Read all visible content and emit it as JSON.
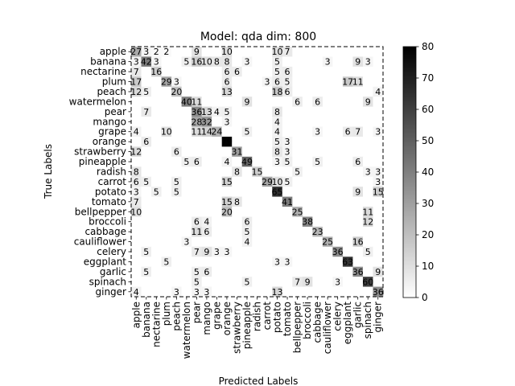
{
  "chart_data": {
    "type": "heatmap",
    "title": "Model: qda dim: 800",
    "xlabel": "Predicted Labels",
    "ylabel": "True Labels",
    "labels": [
      "apple",
      "banana",
      "nectarine",
      "plum",
      "peach",
      "watermelon",
      "pear",
      "mango",
      "grape",
      "orange",
      "strawberry",
      "pineapple",
      "radish",
      "carrot",
      "potato",
      "tomato",
      "bellpepper",
      "broccoli",
      "cabbage",
      "cauliflower",
      "celery",
      "eggplant",
      "garlic",
      "spinach",
      "ginger"
    ],
    "matrix": [
      [
        27,
        3,
        2,
        2,
        0,
        0,
        9,
        0,
        0,
        10,
        0,
        0,
        0,
        0,
        10,
        7,
        0,
        0,
        0,
        0,
        0,
        0,
        0,
        0,
        0
      ],
      [
        3,
        42,
        3,
        0,
        0,
        5,
        16,
        10,
        8,
        8,
        0,
        3,
        0,
        0,
        5,
        0,
        0,
        0,
        0,
        3,
        0,
        0,
        9,
        3,
        0
      ],
      [
        7,
        0,
        16,
        0,
        0,
        0,
        0,
        0,
        0,
        6,
        6,
        0,
        0,
        0,
        5,
        6,
        0,
        0,
        0,
        0,
        0,
        0,
        0,
        0,
        0
      ],
      [
        17,
        0,
        0,
        29,
        3,
        0,
        0,
        0,
        0,
        6,
        0,
        0,
        0,
        3,
        6,
        5,
        0,
        0,
        0,
        0,
        0,
        17,
        11,
        0,
        0
      ],
      [
        12,
        5,
        0,
        0,
        20,
        0,
        0,
        0,
        0,
        13,
        0,
        0,
        0,
        0,
        18,
        6,
        0,
        0,
        0,
        0,
        0,
        0,
        0,
        0,
        4
      ],
      [
        0,
        0,
        0,
        0,
        0,
        40,
        11,
        0,
        0,
        0,
        0,
        9,
        0,
        0,
        0,
        0,
        6,
        0,
        6,
        0,
        0,
        0,
        0,
        9,
        0
      ],
      [
        0,
        7,
        0,
        0,
        0,
        0,
        36,
        13,
        4,
        5,
        0,
        0,
        0,
        0,
        8,
        0,
        0,
        0,
        0,
        0,
        0,
        0,
        0,
        0,
        0
      ],
      [
        0,
        0,
        0,
        0,
        0,
        0,
        28,
        32,
        0,
        3,
        0,
        0,
        0,
        0,
        4,
        0,
        0,
        0,
        0,
        0,
        0,
        0,
        0,
        0,
        0
      ],
      [
        4,
        0,
        0,
        10,
        0,
        0,
        11,
        14,
        24,
        0,
        0,
        5,
        0,
        0,
        4,
        0,
        0,
        0,
        3,
        0,
        0,
        6,
        7,
        0,
        3
      ],
      [
        0,
        6,
        0,
        0,
        0,
        0,
        0,
        0,
        0,
        79,
        0,
        0,
        0,
        0,
        5,
        3,
        0,
        0,
        0,
        0,
        0,
        0,
        0,
        0,
        0
      ],
      [
        12,
        0,
        0,
        0,
        6,
        0,
        0,
        0,
        0,
        0,
        31,
        0,
        0,
        0,
        8,
        3,
        0,
        0,
        0,
        0,
        0,
        0,
        0,
        0,
        0
      ],
      [
        0,
        0,
        0,
        0,
        0,
        5,
        6,
        0,
        0,
        4,
        0,
        49,
        0,
        0,
        3,
        5,
        0,
        0,
        5,
        0,
        0,
        0,
        6,
        0,
        0
      ],
      [
        8,
        0,
        0,
        0,
        0,
        0,
        0,
        0,
        0,
        0,
        8,
        0,
        15,
        0,
        0,
        0,
        5,
        0,
        0,
        0,
        0,
        0,
        0,
        3,
        3
      ],
      [
        6,
        5,
        0,
        0,
        5,
        0,
        0,
        0,
        0,
        15,
        0,
        0,
        0,
        29,
        10,
        5,
        0,
        0,
        0,
        0,
        0,
        0,
        0,
        0,
        3
      ],
      [
        3,
        0,
        5,
        0,
        5,
        0,
        0,
        0,
        0,
        0,
        0,
        0,
        0,
        0,
        65,
        0,
        0,
        0,
        0,
        0,
        0,
        0,
        9,
        0,
        15
      ],
      [
        7,
        0,
        0,
        0,
        0,
        0,
        0,
        0,
        0,
        15,
        8,
        0,
        0,
        0,
        0,
        41,
        0,
        0,
        0,
        0,
        0,
        0,
        0,
        0,
        0
      ],
      [
        10,
        0,
        0,
        0,
        0,
        0,
        0,
        0,
        0,
        20,
        0,
        0,
        0,
        0,
        0,
        0,
        25,
        0,
        0,
        0,
        0,
        0,
        0,
        11,
        0
      ],
      [
        0,
        0,
        0,
        0,
        0,
        0,
        6,
        4,
        0,
        0,
        0,
        6,
        0,
        0,
        0,
        0,
        0,
        38,
        0,
        0,
        0,
        0,
        0,
        12,
        0
      ],
      [
        0,
        0,
        0,
        0,
        0,
        0,
        11,
        6,
        0,
        0,
        0,
        5,
        0,
        0,
        0,
        0,
        0,
        0,
        23,
        0,
        0,
        0,
        0,
        0,
        0
      ],
      [
        0,
        0,
        0,
        0,
        0,
        3,
        0,
        0,
        0,
        0,
        0,
        4,
        0,
        0,
        0,
        0,
        0,
        0,
        0,
        25,
        0,
        0,
        16,
        0,
        0
      ],
      [
        0,
        5,
        0,
        0,
        0,
        0,
        7,
        9,
        3,
        3,
        0,
        0,
        0,
        0,
        0,
        0,
        0,
        0,
        0,
        0,
        36,
        0,
        0,
        5,
        0
      ],
      [
        0,
        0,
        0,
        5,
        0,
        0,
        0,
        0,
        0,
        0,
        0,
        0,
        0,
        0,
        3,
        3,
        0,
        0,
        0,
        0,
        0,
        63,
        0,
        0,
        0
      ],
      [
        0,
        5,
        0,
        0,
        0,
        0,
        5,
        6,
        0,
        0,
        0,
        0,
        0,
        0,
        0,
        0,
        0,
        0,
        0,
        0,
        0,
        0,
        36,
        0,
        9
      ],
      [
        0,
        0,
        0,
        0,
        0,
        0,
        5,
        0,
        0,
        0,
        0,
        5,
        0,
        0,
        0,
        0,
        7,
        9,
        0,
        0,
        3,
        0,
        0,
        60,
        0
      ],
      [
        4,
        0,
        0,
        0,
        3,
        0,
        3,
        3,
        0,
        0,
        0,
        0,
        0,
        0,
        13,
        0,
        0,
        0,
        0,
        0,
        0,
        0,
        0,
        0,
        36
      ]
    ],
    "colorbar": {
      "min": 0,
      "max": 80,
      "ticks": [
        0,
        10,
        20,
        30,
        40,
        50,
        60,
        70,
        80
      ]
    },
    "colormap": "binary",
    "colors": {
      "low": "#ffffff",
      "high": "#000000"
    },
    "grid": false
  }
}
